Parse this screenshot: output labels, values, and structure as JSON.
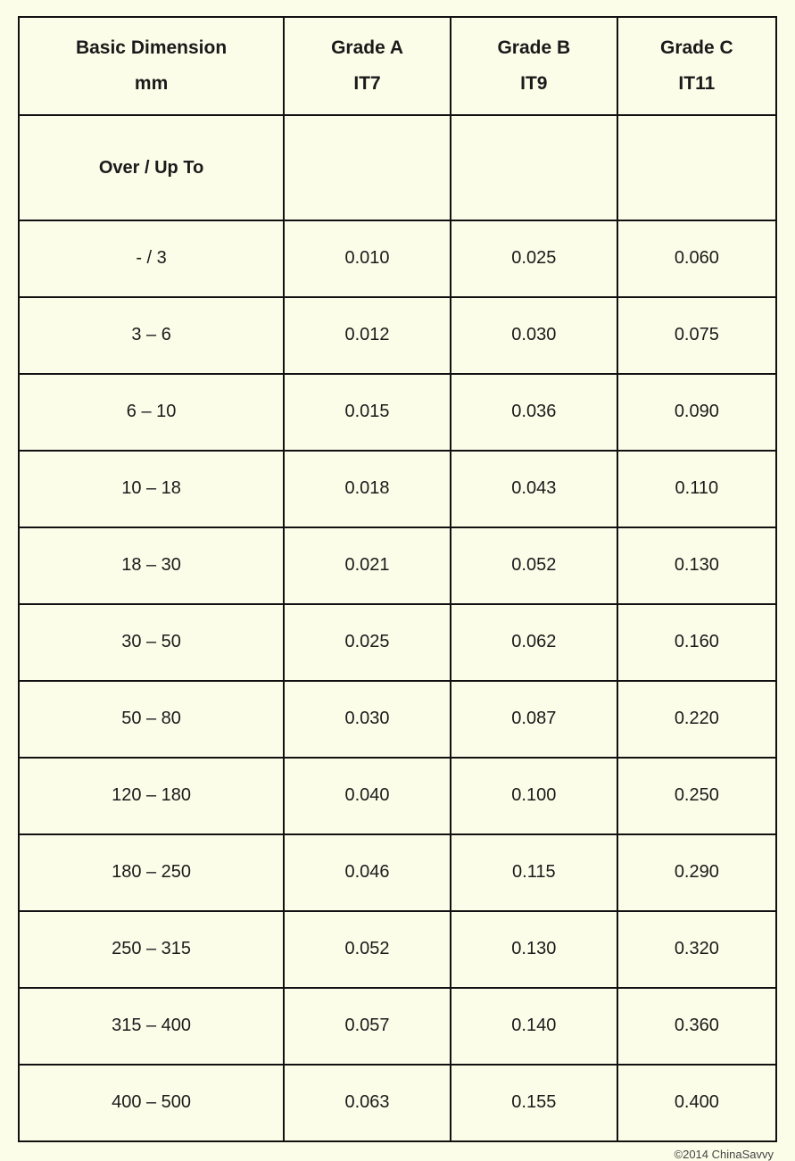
{
  "table": {
    "background_color": "#fcfde9",
    "border_color": "#111111",
    "text_color": "#1a1a1a",
    "header_fontsize": 21,
    "body_fontsize": 20,
    "columns": [
      {
        "line1": "Basic Dimension",
        "line2": "mm"
      },
      {
        "line1": "Grade A",
        "line2": "IT7"
      },
      {
        "line1": "Grade B",
        "line2": "IT9"
      },
      {
        "line1": "Grade C",
        "line2": "IT11"
      }
    ],
    "subheader": "Over / Up To",
    "rows": [
      {
        "dim": "- / 3",
        "a": "0.010",
        "b": "0.025",
        "c": "0.060"
      },
      {
        "dim": "3 – 6",
        "a": "0.012",
        "b": "0.030",
        "c": "0.075"
      },
      {
        "dim": "6 – 10",
        "a": "0.015",
        "b": "0.036",
        "c": "0.090"
      },
      {
        "dim": "10 – 18",
        "a": "0.018",
        "b": "0.043",
        "c": "0.110"
      },
      {
        "dim": "18 – 30",
        "a": "0.021",
        "b": "0.052",
        "c": "0.130"
      },
      {
        "dim": "30 – 50",
        "a": "0.025",
        "b": "0.062",
        "c": "0.160"
      },
      {
        "dim": "50 – 80",
        "a": "0.030",
        "b": "0.087",
        "c": "0.220"
      },
      {
        "dim": "120 – 180",
        "a": "0.040",
        "b": "0.100",
        "c": "0.250"
      },
      {
        "dim": "180 – 250",
        "a": "0.046",
        "b": "0.115",
        "c": "0.290"
      },
      {
        "dim": "250 – 315",
        "a": "0.052",
        "b": "0.130",
        "c": "0.320"
      },
      {
        "dim": "315 – 400",
        "a": "0.057",
        "b": "0.140",
        "c": "0.360"
      },
      {
        "dim": "400 – 500",
        "a": "0.063",
        "b": "0.155",
        "c": "0.400"
      }
    ]
  },
  "copyright": "©2014 ChinaSavvy"
}
